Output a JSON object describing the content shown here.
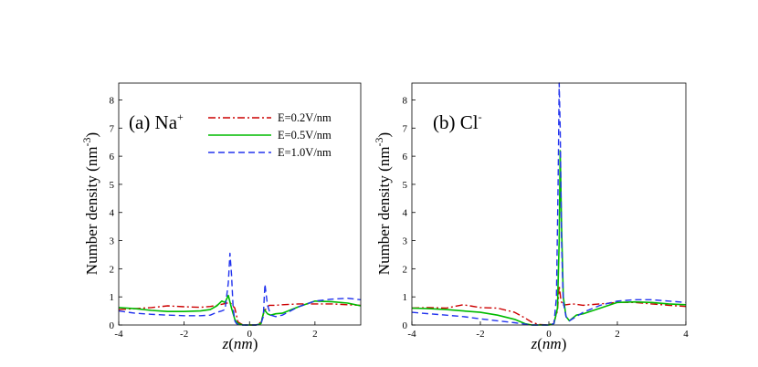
{
  "chart_data": [
    {
      "type": "line",
      "panel_label": "(a) Na",
      "panel_label_superscript": "+",
      "ylabel": "Number density (nm",
      "ylabel_superscript": "-3",
      "ylabel_suffix": ")",
      "xlabel": "z(nm)",
      "xlim": [
        -4,
        3.4
      ],
      "ylim": [
        0,
        8.6
      ],
      "xticks": [
        -4,
        -2,
        0,
        2
      ],
      "yticks": [
        0,
        1,
        2,
        3,
        4,
        5,
        6,
        7,
        8
      ],
      "legend": "top-right",
      "series": [
        {
          "name": "E=0.2V/nm",
          "color": "#cc0000",
          "dash": "dash-dot",
          "x": [
            -4,
            -3.5,
            -3,
            -2.5,
            -2,
            -1.5,
            -1.2,
            -1.0,
            -0.8,
            -0.6,
            -0.45,
            -0.35,
            -0.2,
            0,
            0.2,
            0.35,
            0.45,
            0.6,
            0.8,
            1.0,
            1.5,
            2.0,
            2.5,
            3.0,
            3.4
          ],
          "y": [
            0.55,
            0.58,
            0.62,
            0.68,
            0.65,
            0.63,
            0.66,
            0.7,
            0.75,
            0.8,
            0.6,
            0.1,
            0.0,
            0.0,
            0.0,
            0.1,
            0.5,
            0.7,
            0.7,
            0.72,
            0.75,
            0.75,
            0.75,
            0.72,
            0.7
          ]
        },
        {
          "name": "E=0.5V/nm",
          "color": "#00bb00",
          "dash": "solid",
          "x": [
            -4,
            -3.5,
            -3,
            -2.5,
            -2,
            -1.5,
            -1.2,
            -1.0,
            -0.85,
            -0.75,
            -0.65,
            -0.55,
            -0.45,
            -0.35,
            -0.2,
            0,
            0.2,
            0.35,
            0.45,
            0.55,
            0.65,
            0.8,
            1.0,
            1.5,
            2.0,
            2.5,
            3.0,
            3.4
          ],
          "y": [
            0.62,
            0.58,
            0.52,
            0.48,
            0.48,
            0.5,
            0.55,
            0.68,
            0.85,
            0.8,
            1.05,
            0.6,
            0.2,
            0.05,
            0.0,
            0.0,
            0.0,
            0.05,
            0.55,
            0.4,
            0.35,
            0.4,
            0.42,
            0.65,
            0.85,
            0.83,
            0.78,
            0.68
          ]
        },
        {
          "name": "E=1.0V/nm",
          "color": "#2233ee",
          "dash": "dashed",
          "x": [
            -4,
            -3.5,
            -3,
            -2.5,
            -2,
            -1.5,
            -1.2,
            -1.0,
            -0.85,
            -0.75,
            -0.65,
            -0.6,
            -0.55,
            -0.5,
            -0.45,
            -0.4,
            -0.3,
            -0.15,
            0,
            0.2,
            0.35,
            0.42,
            0.47,
            0.55,
            0.65,
            0.8,
            1.0,
            1.5,
            2.0,
            2.5,
            3.0,
            3.4
          ],
          "y": [
            0.5,
            0.42,
            0.38,
            0.35,
            0.33,
            0.33,
            0.35,
            0.45,
            0.5,
            0.55,
            1.5,
            2.55,
            1.8,
            0.6,
            0.15,
            0.05,
            0.0,
            0.0,
            0.0,
            0.0,
            0.05,
            0.3,
            1.45,
            0.7,
            0.35,
            0.3,
            0.35,
            0.65,
            0.85,
            0.92,
            0.95,
            0.9
          ]
        }
      ]
    },
    {
      "type": "line",
      "panel_label": "(b) Cl",
      "panel_label_superscript": "-",
      "ylabel": "Number density (nm",
      "ylabel_superscript": "-3",
      "ylabel_suffix": ")",
      "xlabel": "z(nm)",
      "xlim": [
        -4,
        4
      ],
      "ylim": [
        0,
        8.6
      ],
      "xticks": [
        -4,
        -2,
        0,
        2,
        4
      ],
      "yticks": [
        0,
        1,
        2,
        3,
        4,
        5,
        6,
        7,
        8
      ],
      "series": [
        {
          "name": "E=0.2V/nm",
          "color": "#cc0000",
          "dash": "dash-dot",
          "x": [
            -4,
            -3.5,
            -3,
            -2.5,
            -2,
            -1.5,
            -1.0,
            -0.7,
            -0.5,
            -0.3,
            0,
            0.15,
            0.25,
            0.3,
            0.35,
            0.4,
            0.5,
            0.7,
            1.0,
            1.5,
            2.0,
            2.5,
            3.0,
            3.5,
            4.0
          ],
          "y": [
            0.6,
            0.62,
            0.6,
            0.72,
            0.62,
            0.6,
            0.45,
            0.25,
            0.1,
            0.02,
            0.0,
            0.1,
            0.5,
            1.4,
            0.9,
            0.7,
            0.72,
            0.75,
            0.7,
            0.75,
            0.8,
            0.8,
            0.75,
            0.7,
            0.66
          ]
        },
        {
          "name": "E=0.5V/nm",
          "color": "#00bb00",
          "dash": "solid",
          "x": [
            -4,
            -3.5,
            -3,
            -2.5,
            -2,
            -1.5,
            -1.0,
            -0.7,
            -0.5,
            -0.3,
            0,
            0.15,
            0.25,
            0.3,
            0.33,
            0.37,
            0.42,
            0.5,
            0.6,
            0.8,
            1.0,
            1.5,
            2.0,
            2.5,
            3.0,
            3.5,
            4.0
          ],
          "y": [
            0.6,
            0.58,
            0.55,
            0.5,
            0.45,
            0.35,
            0.2,
            0.05,
            0.0,
            0.0,
            0.0,
            0.05,
            0.6,
            3.0,
            6.2,
            3.5,
            1.0,
            0.3,
            0.15,
            0.35,
            0.4,
            0.6,
            0.8,
            0.82,
            0.8,
            0.75,
            0.72
          ]
        },
        {
          "name": "E=1.0V/nm",
          "color": "#2233ee",
          "dash": "dashed",
          "x": [
            -4,
            -3.5,
            -3,
            -2.5,
            -2,
            -1.5,
            -1.0,
            -0.7,
            -0.5,
            -0.3,
            0,
            0.15,
            0.22,
            0.27,
            0.3,
            0.33,
            0.37,
            0.42,
            0.5,
            0.6,
            0.8,
            1.0,
            1.5,
            2.0,
            2.5,
            3.0,
            3.5,
            4.0
          ],
          "y": [
            0.45,
            0.4,
            0.35,
            0.3,
            0.22,
            0.15,
            0.08,
            0.03,
            0.0,
            0.0,
            0.0,
            0.05,
            1.0,
            5.0,
            8.6,
            7.0,
            3.0,
            0.8,
            0.3,
            0.15,
            0.3,
            0.45,
            0.7,
            0.85,
            0.9,
            0.9,
            0.85,
            0.8
          ]
        }
      ]
    }
  ]
}
